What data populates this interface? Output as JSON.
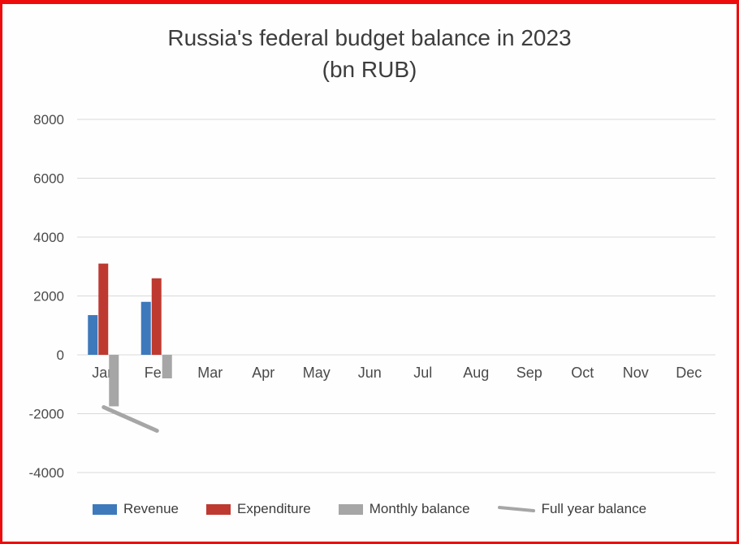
{
  "page": {
    "title_line1": "Russia's federal budget balance in 2023",
    "title_line2": "(bn RUB)"
  },
  "chart_data": {
    "type": "bar",
    "title": "Russia's federal budget balance in 2023 (bn RUB)",
    "categories": [
      "Jan",
      "Feb",
      "Mar",
      "Apr",
      "May",
      "Jun",
      "Jul",
      "Aug",
      "Sep",
      "Oct",
      "Nov",
      "Dec"
    ],
    "series": [
      {
        "name": "Revenue",
        "type": "bar",
        "color": "#3E79BC",
        "values": [
          1350,
          1800,
          null,
          null,
          null,
          null,
          null,
          null,
          null,
          null,
          null,
          null
        ]
      },
      {
        "name": "Expenditure",
        "type": "bar",
        "color": "#BE3A31",
        "values": [
          3100,
          2600,
          null,
          null,
          null,
          null,
          null,
          null,
          null,
          null,
          null,
          null
        ]
      },
      {
        "name": "Monthly balance",
        "type": "bar",
        "color": "#A6A6A6",
        "values": [
          -1750,
          -800,
          null,
          null,
          null,
          null,
          null,
          null,
          null,
          null,
          null,
          null
        ]
      },
      {
        "name": "Full year balance",
        "type": "line",
        "color": "#A6A6A6",
        "values": [
          -1780,
          -2580,
          null,
          null,
          null,
          null,
          null,
          null,
          null,
          null,
          null,
          null
        ]
      }
    ],
    "xlabel": "",
    "ylabel": "",
    "ylim": [
      -4000,
      8000
    ],
    "ytick_step": 2000,
    "grid": true,
    "legend_position": "bottom"
  },
  "style": {
    "grid_color": "#D9D9D9",
    "axis_text_color": "#4a4a4a",
    "title_color": "#3d3d3d",
    "frame_border_color": "#ee0b0b",
    "line_stroke_width": 5
  }
}
